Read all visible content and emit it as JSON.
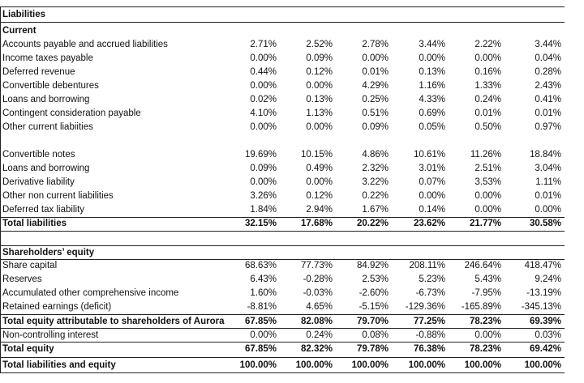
{
  "table": {
    "rows": [
      [
        "Liabilities"
      ],
      [
        "Current"
      ],
      [
        "Accounts payable and accrued liabilities",
        "2.71%",
        "2.52%",
        "2.78%",
        "3.44%",
        "2.22%",
        "3.44%"
      ],
      [
        "Income taxes payable",
        "0.00%",
        "0.09%",
        "0.00%",
        "0.00%",
        "0.00%",
        "0.04%"
      ],
      [
        "Deferred revenue",
        "0.44%",
        "0.12%",
        "0.01%",
        "0.13%",
        "0.16%",
        "0.28%"
      ],
      [
        "Convertible debentures",
        "0.00%",
        "0.00%",
        "4.29%",
        "1.16%",
        "1.33%",
        "2.43%"
      ],
      [
        "Loans and borrowing",
        "0.02%",
        "0.13%",
        "0.25%",
        "4.33%",
        "0.24%",
        "0.41%"
      ],
      [
        "Contingent consideration payable",
        "4.10%",
        "1.13%",
        "0.51%",
        "0.69%",
        "0.01%",
        "0.01%"
      ],
      [
        "Other current liabiities",
        "0.00%",
        "0.00%",
        "0.09%",
        "0.05%",
        "0.50%",
        "0.97%"
      ],
      [
        "Convertible notes",
        "19.69%",
        "10.15%",
        "4.86%",
        "10.61%",
        "11.26%",
        "18.84%"
      ],
      [
        "Loans and borrowing",
        "0.09%",
        "0.49%",
        "2.32%",
        "3.01%",
        "2.51%",
        "3.04%"
      ],
      [
        "Derivative liability",
        "0.00%",
        "0.00%",
        "3.22%",
        "0.07%",
        "3.53%",
        "1.11%"
      ],
      [
        "Other non current liabilities",
        "3.26%",
        "0.12%",
        "0.22%",
        "0.00%",
        "0.00%",
        "0.01%"
      ],
      [
        "Deferred tax liability",
        "1.84%",
        "2.94%",
        "1.67%",
        "0.14%",
        "0.00%",
        "0.00%"
      ],
      [
        "Total liabilities",
        "32.15%",
        "17.68%",
        "20.22%",
        "23.62%",
        "21.77%",
        "30.58%"
      ],
      [
        "Shareholders’ equity"
      ],
      [
        "Share capital",
        "68.63%",
        "77.73%",
        "84.92%",
        "208.11%",
        "246.64%",
        "418.47%"
      ],
      [
        "Reserves",
        "6.43%",
        "-0.28%",
        "2.53%",
        "5.23%",
        "5.43%",
        "9.24%"
      ],
      [
        "Accumulated other comprehensive income",
        "1.60%",
        "-0.03%",
        "-2.60%",
        "-6.73%",
        "-7.95%",
        "-13.19%"
      ],
      [
        "Retained earnings (deficit)",
        "-8.81%",
        "4.65%",
        "-5.15%",
        "-129.36%",
        "-165.89%",
        "-345.13%"
      ],
      [
        "Total equity attributable to shareholders of Aurora",
        "67.85%",
        "82.08%",
        "79.70%",
        "77.25%",
        "78.23%",
        "69.39%"
      ],
      [
        "Non-controlling interest",
        "0.00%",
        "0.24%",
        "0.08%",
        "-0.88%",
        "0.00%",
        "0.03%"
      ],
      [
        "Total equity",
        "67.85%",
        "82.32%",
        "79.78%",
        "76.38%",
        "78.23%",
        "69.42%"
      ],
      [
        "Total liabilities and equity",
        "100.00%",
        "100.00%",
        "100.00%",
        "100.00%",
        "100.00%",
        "100.00%"
      ]
    ]
  }
}
